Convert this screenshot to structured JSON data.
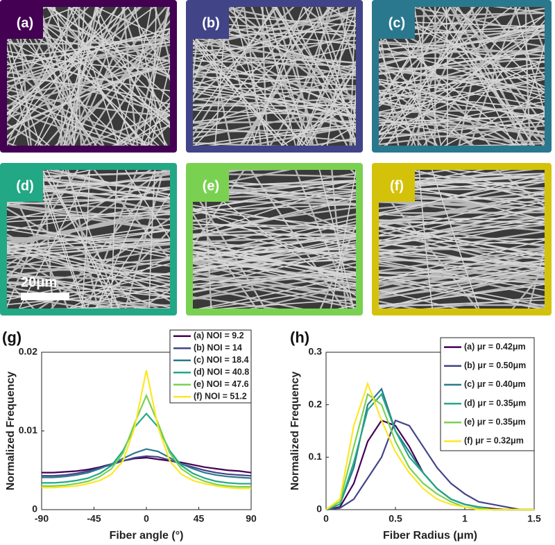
{
  "panels": [
    {
      "label": "(a)",
      "color": "#440154"
    },
    {
      "label": "(b)",
      "color": "#414487"
    },
    {
      "label": "(c)",
      "color": "#2a788e"
    },
    {
      "label": "(d)",
      "color": "#22a884"
    },
    {
      "label": "(e)",
      "color": "#7ad151"
    },
    {
      "label": "(f)",
      "color": "#d4c20a"
    }
  ],
  "scale_bar": "20μm",
  "chart_data": [
    {
      "type": "line",
      "panel_label": "(g)",
      "xlabel": "Fiber angle (°)",
      "ylabel": "Normalized Frequency",
      "x": [
        -90,
        -80,
        -70,
        -60,
        -50,
        -40,
        -30,
        -20,
        -10,
        0,
        10,
        20,
        30,
        40,
        50,
        60,
        70,
        80,
        90
      ],
      "xlim": [
        -90,
        90
      ],
      "xticks": [
        -90,
        -45,
        0,
        45,
        90
      ],
      "ylim": [
        0,
        0.02
      ],
      "yticks": [
        0,
        0.01,
        0.02
      ],
      "series": [
        {
          "name": "(a) NOI = 9.2",
          "color": "#440154",
          "values": [
            0.0047,
            0.0047,
            0.0048,
            0.0049,
            0.0051,
            0.0054,
            0.0058,
            0.0062,
            0.0065,
            0.0066,
            0.0064,
            0.0062,
            0.006,
            0.0057,
            0.0054,
            0.0052,
            0.005,
            0.0049,
            0.0047
          ]
        },
        {
          "name": "(b) NOI = 14",
          "color": "#414487",
          "values": [
            0.0043,
            0.0043,
            0.0044,
            0.0046,
            0.0049,
            0.0053,
            0.0057,
            0.0062,
            0.0066,
            0.0068,
            0.0067,
            0.0063,
            0.0058,
            0.0054,
            0.005,
            0.0047,
            0.0045,
            0.0044,
            0.0043
          ]
        },
        {
          "name": "(c) NOI = 18.4",
          "color": "#2a788e",
          "values": [
            0.0041,
            0.0041,
            0.0042,
            0.0044,
            0.0047,
            0.0052,
            0.0058,
            0.0065,
            0.0072,
            0.0077,
            0.0074,
            0.0066,
            0.0058,
            0.0052,
            0.0047,
            0.0044,
            0.0042,
            0.0041,
            0.004
          ]
        },
        {
          "name": "(d) NOI = 40.8",
          "color": "#22a884",
          "values": [
            0.0034,
            0.0034,
            0.0035,
            0.0037,
            0.004,
            0.0046,
            0.0056,
            0.0075,
            0.0105,
            0.0122,
            0.0105,
            0.0075,
            0.0056,
            0.0046,
            0.004,
            0.0036,
            0.0034,
            0.0033,
            0.0033
          ]
        },
        {
          "name": "(e) NOI = 47.6",
          "color": "#7ad151",
          "values": [
            0.003,
            0.003,
            0.0031,
            0.0033,
            0.0036,
            0.0042,
            0.0052,
            0.0072,
            0.011,
            0.0145,
            0.011,
            0.0072,
            0.0052,
            0.0042,
            0.0036,
            0.0032,
            0.003,
            0.0029,
            0.0029
          ]
        },
        {
          "name": "(f) NOI = 51.2",
          "color": "#fde725",
          "values": [
            0.0028,
            0.0028,
            0.0029,
            0.003,
            0.0033,
            0.0037,
            0.0045,
            0.0062,
            0.0105,
            0.0177,
            0.0105,
            0.0062,
            0.0045,
            0.0037,
            0.0033,
            0.003,
            0.0028,
            0.0027,
            0.0027
          ]
        }
      ]
    },
    {
      "type": "line",
      "panel_label": "(h)",
      "xlabel": "Fiber Radius (μm)",
      "ylabel": "Normalized Frequency",
      "x": [
        0,
        0.1,
        0.2,
        0.3,
        0.4,
        0.5,
        0.6,
        0.7,
        0.8,
        0.9,
        1,
        1.1,
        1.2,
        1.3,
        1.4,
        1.5
      ],
      "xlim": [
        0,
        1.5
      ],
      "xticks": [
        0,
        0.5,
        1,
        1.5
      ],
      "ylim": [
        0,
        0.3
      ],
      "yticks": [
        0,
        0.1,
        0.2,
        0.3
      ],
      "series": [
        {
          "name": "(a) μr = 0.42μm",
          "color": "#440154",
          "values": [
            0,
            0.005,
            0.05,
            0.13,
            0.17,
            0.16,
            0.12,
            0.07,
            0.04,
            0.02,
            0.01,
            0.005,
            0.002,
            0,
            0,
            0
          ]
        },
        {
          "name": "(b) μr = 0.50μm",
          "color": "#414487",
          "values": [
            0,
            0.003,
            0.02,
            0.06,
            0.1,
            0.17,
            0.16,
            0.12,
            0.08,
            0.05,
            0.03,
            0.015,
            0.01,
            0.005,
            0,
            0
          ]
        },
        {
          "name": "(c) μr = 0.40μm",
          "color": "#2a788e",
          "values": [
            0,
            0.01,
            0.08,
            0.2,
            0.23,
            0.15,
            0.11,
            0.07,
            0.04,
            0.02,
            0.01,
            0.005,
            0,
            0,
            0,
            0
          ]
        },
        {
          "name": "(d) μr = 0.35μm",
          "color": "#22a884",
          "values": [
            0,
            0.01,
            0.09,
            0.19,
            0.22,
            0.15,
            0.1,
            0.07,
            0.04,
            0.02,
            0.01,
            0.005,
            0,
            0,
            0,
            0
          ]
        },
        {
          "name": "(e) μr = 0.35μm",
          "color": "#7ad151",
          "values": [
            0,
            0.015,
            0.12,
            0.22,
            0.2,
            0.13,
            0.08,
            0.05,
            0.03,
            0.015,
            0.005,
            0.002,
            0,
            0,
            0,
            0
          ]
        },
        {
          "name": "(f) μr = 0.32μm",
          "color": "#fde725",
          "values": [
            0,
            0.02,
            0.16,
            0.24,
            0.17,
            0.11,
            0.07,
            0.04,
            0.02,
            0.01,
            0.005,
            0,
            0,
            0,
            0,
            0
          ]
        }
      ]
    }
  ]
}
